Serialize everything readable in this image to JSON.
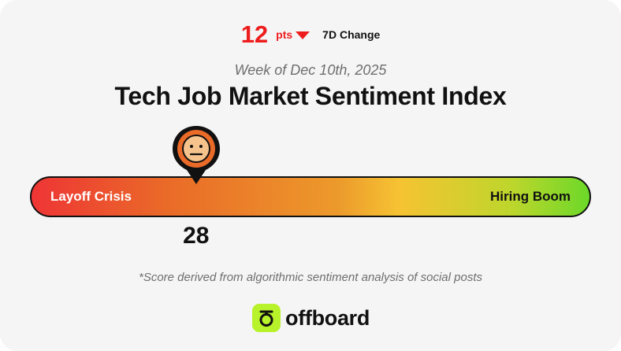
{
  "change": {
    "value": "12",
    "unit": "pts",
    "direction": "down",
    "label": "7D Change",
    "color": "#ee1d1d"
  },
  "header": {
    "week": "Week of Dec 10th, 2025",
    "title": "Tech Job Market Sentiment Index"
  },
  "gauge": {
    "left_label": "Layoff Crisis",
    "right_label": "Hiring Boom",
    "score": "28",
    "score_value": 28,
    "min": 0,
    "max": 100,
    "marker_icon": "neutral-face-icon",
    "colors": {
      "low": "#ee3535",
      "mid": "#f6c333",
      "high": "#6cd829"
    }
  },
  "footnote": "*Score derived from algorithmic sentiment analysis of social posts",
  "brand": {
    "name": "offboard",
    "logo_icon": "offboard-logo-icon",
    "accent": "#b8f22a"
  }
}
